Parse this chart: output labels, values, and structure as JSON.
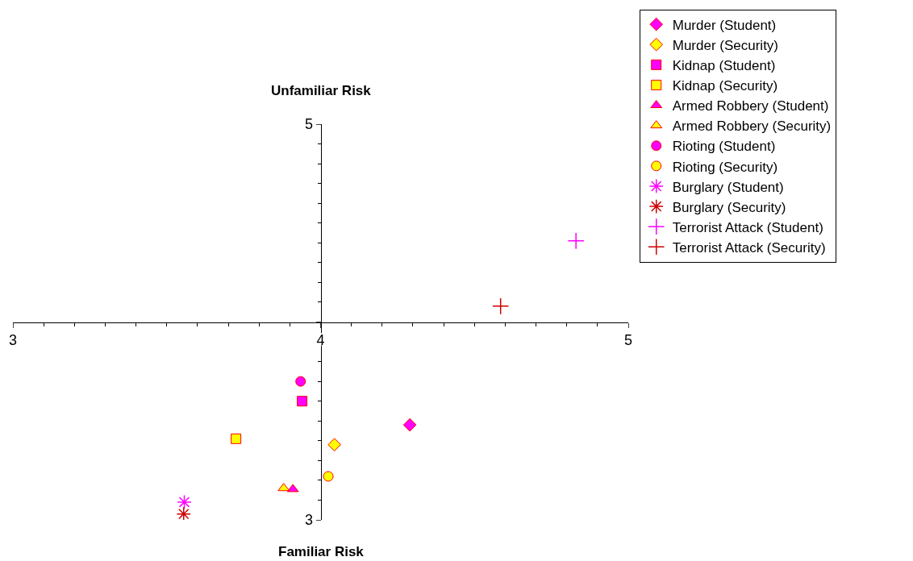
{
  "chart_data": {
    "type": "scatter",
    "xlabel": "Familiar Risk",
    "ylabel": "Unfamiliar Risk",
    "xlim": [
      3,
      5
    ],
    "ylim": [
      3,
      5
    ],
    "xticks": [
      3,
      4,
      5
    ],
    "yticks": [
      3,
      {
        "value": 4,
        "label": null
      },
      5
    ],
    "legend": "top right",
    "series": [
      {
        "name": "Murder (Student)",
        "color": "#ff00ff",
        "marker": "diamond",
        "x": [
          4.29
        ],
        "values": [
          3.48
        ]
      },
      {
        "name": "Murder (Security)",
        "color": "#ffff00",
        "marker": "diamond",
        "x": [
          4.045
        ],
        "values": [
          3.38
        ]
      },
      {
        "name": "Kidnap (Student)",
        "color": "#ff00ff",
        "marker": "square",
        "x": [
          3.94
        ],
        "values": [
          3.6
        ]
      },
      {
        "name": "Kidnap (Security)",
        "color": "#ffff00",
        "marker": "square",
        "x": [
          3.725
        ],
        "values": [
          3.41
        ]
      },
      {
        "name": "Armed Robbery (Student)",
        "color": "#ff00ff",
        "marker": "triangle",
        "x": [
          3.91
        ],
        "values": [
          3.155
        ]
      },
      {
        "name": "Armed Robbery (Security)",
        "color": "#ffff00",
        "marker": "triangle",
        "x": [
          3.88
        ],
        "values": [
          3.16
        ]
      },
      {
        "name": "Rioting (Student)",
        "color": "#ff00ff",
        "marker": "circle",
        "x": [
          3.935
        ],
        "values": [
          3.7
        ]
      },
      {
        "name": "Rioting (Security)",
        "color": "#ffff00",
        "marker": "circle",
        "x": [
          4.025
        ],
        "values": [
          3.22
        ]
      },
      {
        "name": "Burglary (Student)",
        "color": "#ff00ff",
        "x": [
          3.557
        ],
        "values": [
          3.09
        ]
      },
      {
        "name": "Burglary (Security)",
        "color": "#cc0000",
        "x": [
          3.555
        ],
        "values": [
          3.03
        ]
      },
      {
        "name": "Terrorist Attack (Student)",
        "color": "#ff00ff",
        "marker": "cross",
        "x": [
          4.83
        ],
        "values": [
          4.41
        ]
      },
      {
        "name": "Terrorist Attack (Security)",
        "color": "#cc0000",
        "marker": "cross",
        "x": [
          4.585
        ],
        "values": [
          4.08
        ]
      }
    ]
  }
}
